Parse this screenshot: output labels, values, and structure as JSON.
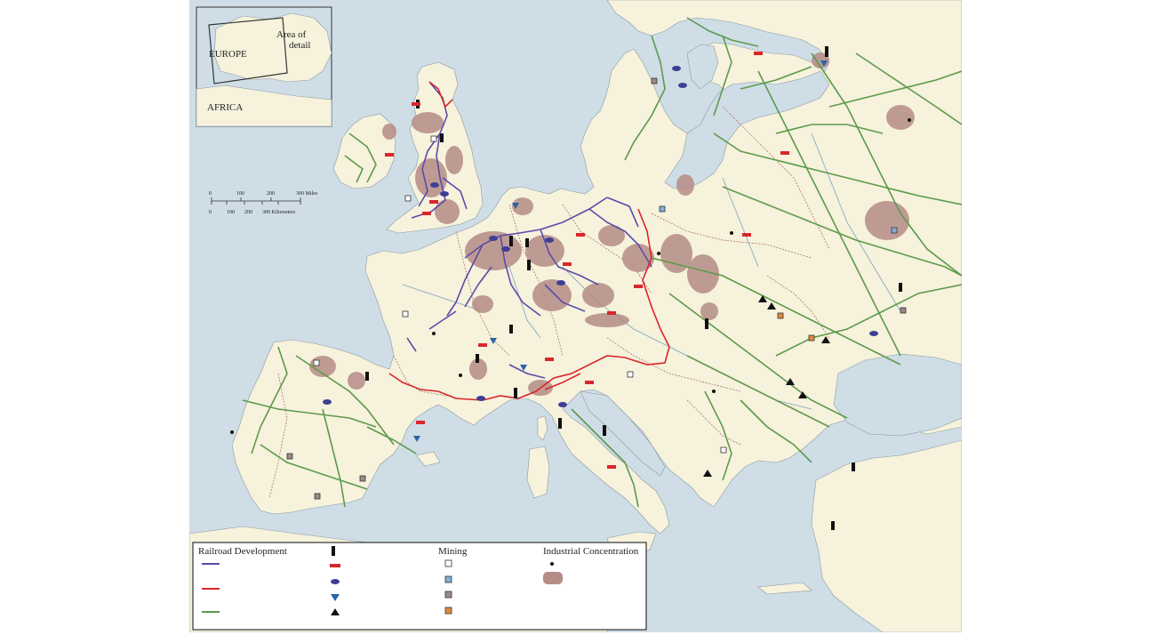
{
  "inset": {
    "area_label": [
      "Area of",
      "detail"
    ],
    "europe_label": "EUROPE",
    "africa_label": "AFRICA"
  },
  "scale": {
    "miles_ticks": [
      "0",
      "100",
      "200",
      "300 Miles"
    ],
    "km_ticks": [
      "0",
      "100",
      "200",
      "300 Kilometers"
    ]
  },
  "legend": {
    "railroad_title": "Railroad Development",
    "mining_title": "Mining",
    "industry_title": "Industrial Concentration"
  },
  "colors": {
    "sea": "#cfdde6",
    "land": "#f6f2dc",
    "rail_early": "#5b4aa8",
    "rail_mid": "#d8262a",
    "rail_late": "#5c9a4c",
    "industrial_area": "#b58c86",
    "border": "#a86060"
  },
  "symbols": {
    "coal": "black-bar",
    "iron": "red-bar",
    "textile": "blue-oval",
    "chemical": "blue-triangle-down",
    "other": "black-triangle",
    "mine_white": "white-square",
    "mine_blue": "blue-square",
    "mine_grey": "grey-square",
    "mine_orange": "orange-square"
  }
}
